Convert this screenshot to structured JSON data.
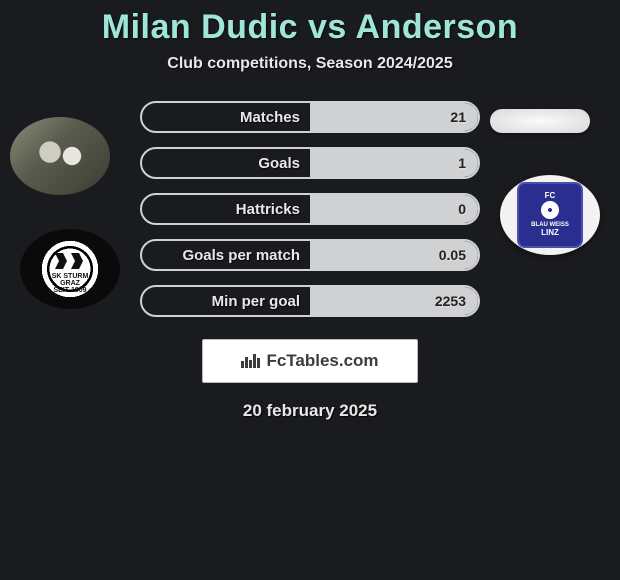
{
  "header": {
    "title": "Milan Dudic vs Anderson",
    "title_color": "#9fe6d8",
    "title_fontsize": 34,
    "subtitle": "Club competitions, Season 2024/2025",
    "subtitle_fontsize": 16
  },
  "background_color": "#1a1b1e",
  "text_color": "#e8e8e8",
  "left_side": {
    "player_photo_alt": "Milan Dudic action photo",
    "club_name": "SK Sturm Graz",
    "club_badge_text": "SK STURM GRAZ",
    "club_badge_year": "SEIT 1909",
    "club_badge_bg": "#0a0a0a",
    "club_badge_fg": "#ffffff"
  },
  "right_side": {
    "player_photo_alt": "Anderson placeholder",
    "club_name": "FC Blau-Weiss Linz",
    "club_badge_top": "FC",
    "club_badge_mid": "BLAU WEISS",
    "club_badge_bottom": "LINZ",
    "club_badge_bg": "#2a2f8f",
    "club_badge_fg": "#ffffff"
  },
  "stats": {
    "pill_border_color": "#cfd1d3",
    "pill_fill_color": "#cfd1d3",
    "pill_bg_color": "#1a1b1e",
    "pill_height": 32,
    "pill_radius": 16,
    "label_fontsize": 15,
    "value_fontsize": 14,
    "rows": [
      {
        "label": "Matches",
        "left_value": "",
        "right_value": "21",
        "left_fill_pct": 0,
        "right_fill_pct": 100
      },
      {
        "label": "Goals",
        "left_value": "",
        "right_value": "1",
        "left_fill_pct": 0,
        "right_fill_pct": 100
      },
      {
        "label": "Hattricks",
        "left_value": "",
        "right_value": "0",
        "left_fill_pct": 0,
        "right_fill_pct": 100
      },
      {
        "label": "Goals per match",
        "left_value": "",
        "right_value": "0.05",
        "left_fill_pct": 0,
        "right_fill_pct": 100
      },
      {
        "label": "Min per goal",
        "left_value": "",
        "right_value": "2253",
        "left_fill_pct": 0,
        "right_fill_pct": 100
      }
    ]
  },
  "brand": {
    "text": "FcTables.com",
    "icon_name": "bar-chart-icon",
    "bg": "#ffffff",
    "fg": "#3c3c3c"
  },
  "footer": {
    "date": "20 february 2025",
    "fontsize": 17
  }
}
